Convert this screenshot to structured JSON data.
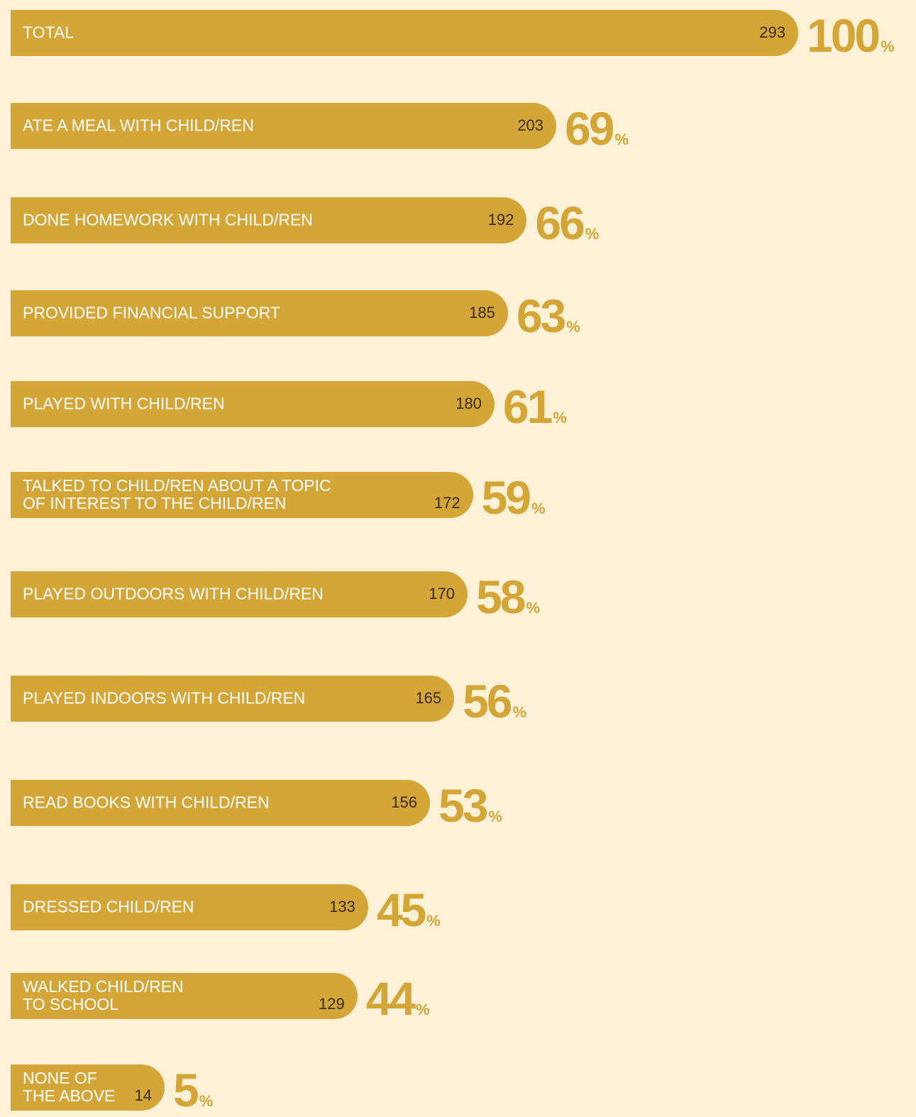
{
  "chart_data": {
    "type": "bar",
    "categories": [
      "TOTAL",
      "ATE A MEAL WITH CHILD/REN",
      "DONE HOMEWORK WITH CHILD/REN",
      "PROVIDED FINANCIAL SUPPORT",
      "PLAYED WITH CHILD/REN",
      "TALKED TO CHILD/REN ABOUT A TOPIC\nOF INTEREST TO THE CHILD/REN",
      "PLAYED OUTDOORS WITH CHILD/REN",
      "PLAYED INDOORS WITH CHILD/REN",
      "READ BOOKS WITH CHILD/REN",
      "DRESSED CHILD/REN",
      "WALKED CHILD/REN\nTO SCHOOL",
      "NONE OF\nTHE ABOVE"
    ],
    "values": [
      293,
      203,
      192,
      185,
      180,
      172,
      170,
      165,
      156,
      133,
      129,
      14
    ],
    "percentages": [
      100,
      69,
      66,
      63,
      61,
      59,
      58,
      56,
      53,
      45,
      44,
      5
    ],
    "percent_sign": "%",
    "color": "#d4a537"
  }
}
